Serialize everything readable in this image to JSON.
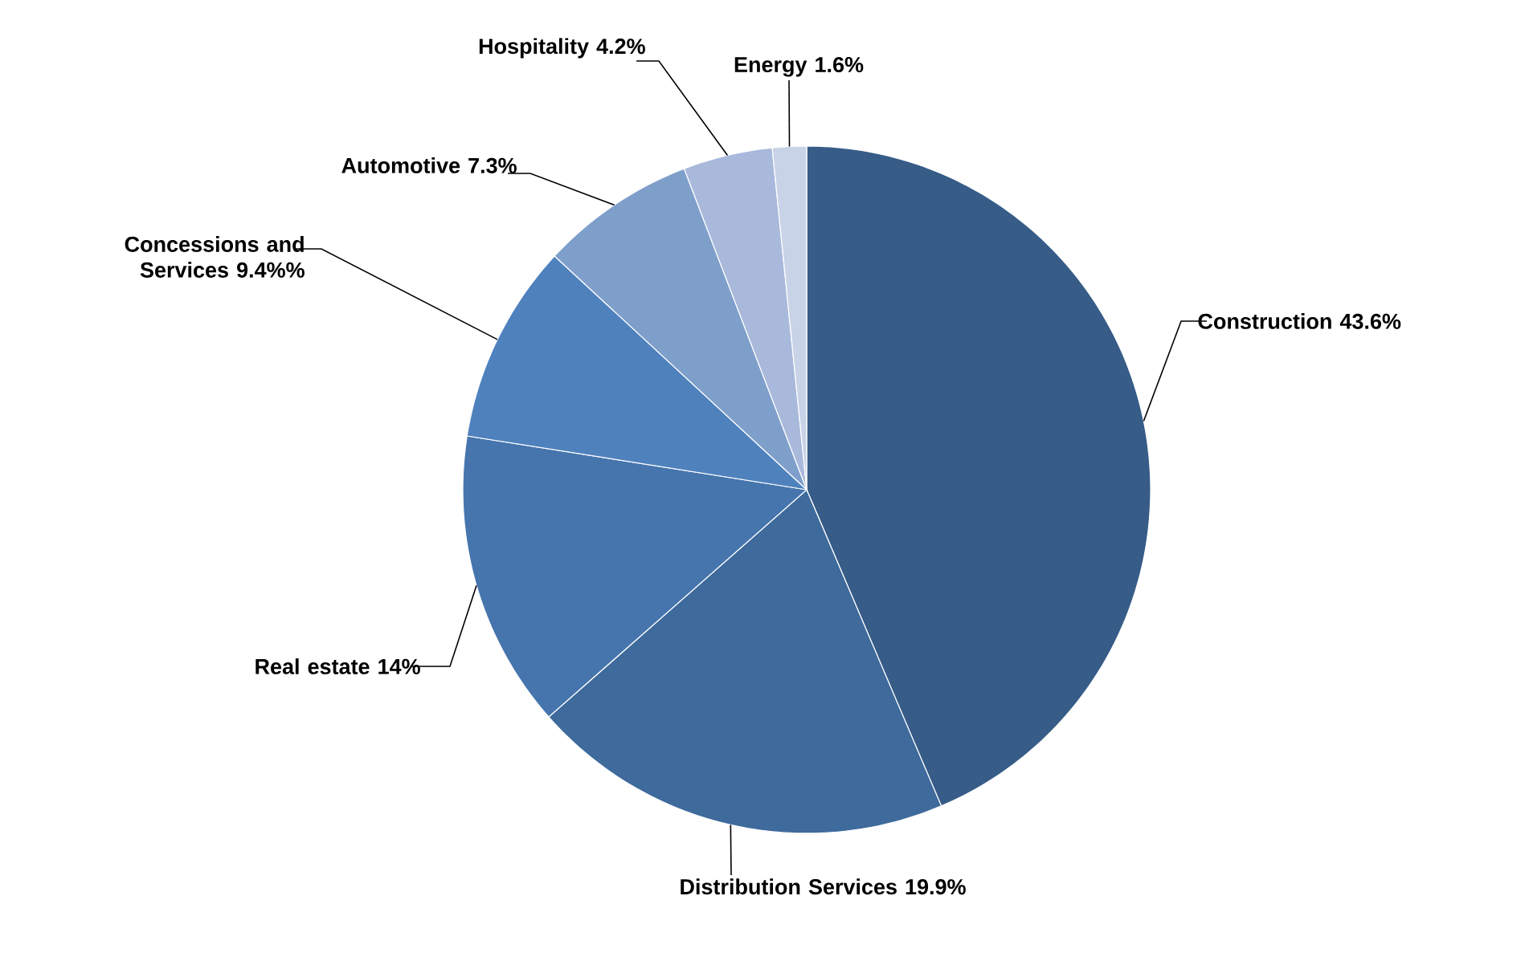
{
  "chart_data": {
    "type": "pie",
    "categories": [
      "Construction",
      "Distribution Services",
      "Real estate",
      "Concessions and Services",
      "Automotive",
      "Hospitality",
      "Energy"
    ],
    "values": [
      43.6,
      19.9,
      14,
      9.4,
      7.3,
      4.2,
      1.6
    ],
    "value_labels": [
      "43.6%",
      "19.9%",
      "14%",
      "9.4%%",
      "7.3%",
      "4.2%",
      "1.6%"
    ],
    "colors": [
      "#365c87",
      "#3e6a9c",
      "#4675ad",
      "#4f81bd",
      "#7f9fcb",
      "#a8b9db",
      "#c8d3e8"
    ]
  }
}
